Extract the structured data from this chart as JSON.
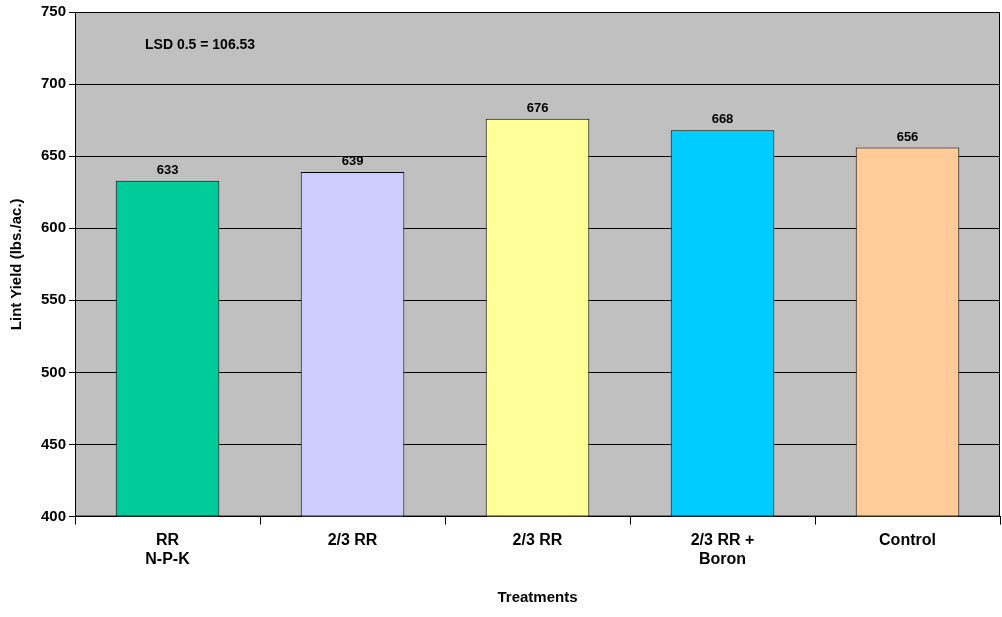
{
  "chart_data": {
    "type": "bar",
    "xlabel": "Treatments",
    "ylabel": "Lint Yield (lbs./ac.)",
    "categories": [
      "RR\nN-P-K",
      "2/3 RR",
      "2/3 RR",
      "2/3 RR +\nBoron",
      "Control"
    ],
    "values": [
      633,
      639,
      676,
      668,
      656
    ],
    "colors": [
      "#00cc99",
      "#ccccff",
      "#ffff99",
      "#00ccff",
      "#ffcc99"
    ],
    "ylim": [
      400,
      750
    ],
    "yticks": [
      400,
      450,
      500,
      550,
      600,
      650,
      700,
      750
    ],
    "grid": "y",
    "data_labels": true,
    "legend": false,
    "annotations": [
      "LSD 0.5 = 106.53"
    ]
  }
}
